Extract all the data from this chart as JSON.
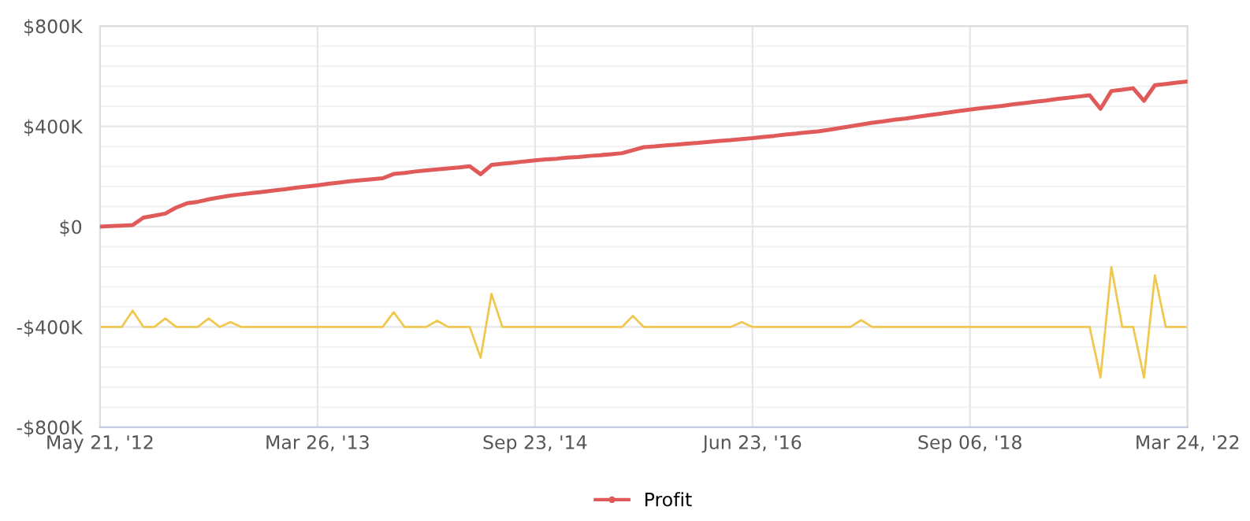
{
  "chart_data": {
    "type": "line",
    "categories": [
      "May 21, '12",
      null,
      null,
      null,
      null,
      null,
      null,
      null,
      null,
      null,
      null,
      null,
      null,
      null,
      null,
      null,
      null,
      null,
      null,
      null,
      "Mar 26, '13",
      null,
      null,
      null,
      null,
      null,
      null,
      null,
      null,
      null,
      null,
      null,
      null,
      null,
      null,
      null,
      null,
      null,
      null,
      null,
      "Sep 23, '14",
      null,
      null,
      null,
      null,
      null,
      null,
      null,
      null,
      null,
      null,
      null,
      null,
      null,
      null,
      null,
      null,
      null,
      null,
      null,
      "Jun 23, '16",
      null,
      null,
      null,
      null,
      null,
      null,
      null,
      null,
      null,
      null,
      null,
      null,
      null,
      null,
      null,
      null,
      null,
      null,
      null,
      "Sep 06, '18",
      null,
      null,
      null,
      null,
      null,
      null,
      null,
      null,
      null,
      null,
      null,
      null,
      null,
      null,
      null,
      null,
      null,
      null,
      null,
      "Mar 24, '22"
    ],
    "ylim": [
      -800000,
      800000
    ],
    "yticks": [
      {
        "value": -800000,
        "label": "-$800K"
      },
      {
        "value": -720000,
        "label": null
      },
      {
        "value": -640000,
        "label": null
      },
      {
        "value": -560000,
        "label": null
      },
      {
        "value": -480000,
        "label": null
      },
      {
        "value": -400000,
        "label": "-$400K"
      },
      {
        "value": -320000,
        "label": null
      },
      {
        "value": -240000,
        "label": null
      },
      {
        "value": -160000,
        "label": null
      },
      {
        "value": -80000,
        "label": null
      },
      {
        "value": 0,
        "label": "$0"
      },
      {
        "value": 80000,
        "label": null
      },
      {
        "value": 160000,
        "label": null
      },
      {
        "value": 240000,
        "label": null
      },
      {
        "value": 320000,
        "label": null
      },
      {
        "value": 400000,
        "label": "$400K"
      },
      {
        "value": 480000,
        "label": null
      },
      {
        "value": 560000,
        "label": null
      },
      {
        "value": 640000,
        "label": null
      },
      {
        "value": 720000,
        "label": null
      },
      {
        "value": 800000,
        "label": "$800K"
      }
    ],
    "grid": true,
    "legend": "bottom",
    "line_style": "solid",
    "series": [
      {
        "name": "Profit",
        "color": "#e05a5a",
        "values": [
          0,
          2000,
          4000,
          6000,
          36000,
          44000,
          52000,
          76000,
          93000,
          99000,
          109000,
          117000,
          124000,
          129000,
          134000,
          139000,
          144000,
          149000,
          155000,
          160000,
          165000,
          171000,
          176000,
          181000,
          185000,
          189000,
          193000,
          210000,
          214000,
          220000,
          224000,
          228000,
          232000,
          236000,
          241000,
          209000,
          246000,
          251000,
          255000,
          260000,
          264000,
          268000,
          271000,
          275000,
          278000,
          282000,
          285000,
          289000,
          293000,
          305000,
          317000,
          320000,
          324000,
          327000,
          331000,
          334000,
          338000,
          342000,
          345000,
          349000,
          353000,
          358000,
          362000,
          367000,
          371000,
          376000,
          380000,
          386000,
          393000,
          400000,
          407000,
          414000,
          420000,
          426000,
          431000,
          437000,
          443000,
          449000,
          455000,
          461000,
          467000,
          472000,
          477000,
          482000,
          488000,
          493000,
          498000,
          503000,
          509000,
          514000,
          519000,
          524000,
          470000,
          541000,
          546000,
          552000,
          502000,
          564000,
          569000,
          574000,
          579000
        ]
      },
      {
        "color": "#f0c850",
        "values": [
          -400000,
          -400000,
          -400000,
          -335000,
          -400000,
          -400000,
          -366000,
          -400000,
          -400000,
          -400000,
          -366000,
          -400000,
          -381000,
          -400000,
          -400000,
          -400000,
          -400000,
          -400000,
          -400000,
          -400000,
          -400000,
          -400000,
          -400000,
          -400000,
          -400000,
          -400000,
          -400000,
          -341000,
          -400000,
          -400000,
          -400000,
          -375000,
          -400000,
          -400000,
          -400000,
          -523000,
          -268000,
          -400000,
          -400000,
          -400000,
          -400000,
          -400000,
          -400000,
          -400000,
          -400000,
          -400000,
          -400000,
          -400000,
          -400000,
          -356000,
          -400000,
          -400000,
          -400000,
          -400000,
          -400000,
          -400000,
          -400000,
          -400000,
          -400000,
          -381000,
          -400000,
          -400000,
          -400000,
          -400000,
          -400000,
          -400000,
          -400000,
          -400000,
          -400000,
          -400000,
          -373000,
          -400000,
          -400000,
          -400000,
          -400000,
          -400000,
          -400000,
          -400000,
          -400000,
          -400000,
          -400000,
          -400000,
          -400000,
          -400000,
          -400000,
          -400000,
          -400000,
          -400000,
          -400000,
          -400000,
          -400000,
          -400000,
          -602000,
          -161000,
          -400000,
          -400000,
          -602000,
          -194000,
          -400000,
          -400000,
          -400000
        ]
      }
    ]
  }
}
